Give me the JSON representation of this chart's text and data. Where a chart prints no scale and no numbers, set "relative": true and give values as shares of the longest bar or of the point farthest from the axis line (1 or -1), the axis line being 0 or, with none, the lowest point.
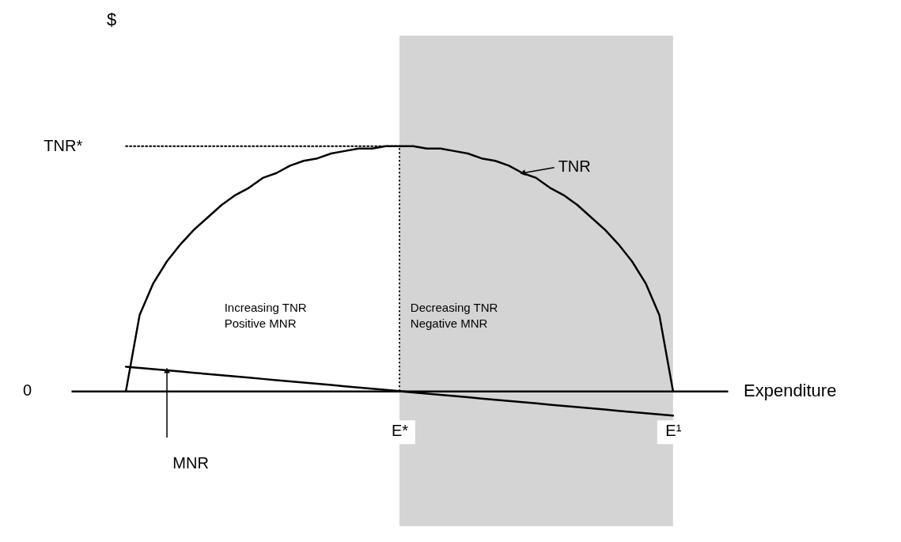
{
  "chart_data": {
    "type": "line",
    "relative": true,
    "xlabel": "Expenditure",
    "categories": [
      null,
      null,
      null,
      null,
      null,
      null,
      null,
      null,
      null,
      null,
      null,
      null,
      null,
      null,
      null,
      null,
      null,
      null,
      null,
      null,
      "E*",
      null,
      null,
      null,
      null,
      null,
      null,
      null,
      null,
      null,
      null,
      null,
      null,
      null,
      null,
      null,
      null,
      null,
      null,
      null,
      "E¹"
    ],
    "series": [
      {
        "name": "TNR",
        "color": "#000000",
        "values": [
          0,
          0.31,
          0.44,
          0.53,
          0.6,
          0.66,
          0.71,
          0.76,
          0.8,
          0.83,
          0.87,
          0.89,
          0.92,
          0.94,
          0.95,
          0.97,
          0.98,
          0.99,
          0.99,
          1,
          1,
          1,
          0.99,
          0.99,
          0.98,
          0.97,
          0.95,
          0.94,
          0.92,
          0.89,
          0.87,
          0.83,
          0.8,
          0.76,
          0.71,
          0.66,
          0.6,
          0.53,
          0.44,
          0.31,
          0
        ]
      },
      {
        "name": "MNR",
        "color": "#000000",
        "values": [
          0.1,
          0.095,
          0.09,
          0.085,
          0.08,
          0.075,
          0.07,
          0.065,
          0.06,
          0.055,
          0.05,
          0.045,
          0.04,
          0.035,
          0.03,
          0.025,
          0.02,
          0.015,
          0.01,
          0.005,
          0,
          -0.005,
          -0.01,
          -0.015,
          -0.02,
          -0.025,
          -0.03,
          -0.035,
          -0.04,
          -0.045,
          -0.05,
          -0.055,
          -0.06,
          -0.065,
          -0.07,
          -0.075,
          -0.08,
          -0.085,
          -0.09,
          -0.095,
          -0.1
        ]
      },
      {
        "name": "TNR*",
        "color": "#000000",
        "line_style": "dotted",
        "values": [
          1,
          1,
          1,
          1,
          1,
          1,
          1,
          1,
          1,
          1,
          1,
          1,
          1,
          1,
          1,
          1,
          1,
          1,
          1,
          1,
          1,
          null,
          null,
          null,
          null,
          null,
          null,
          null,
          null,
          null,
          null,
          null,
          null,
          null,
          null,
          null,
          null,
          null,
          null,
          null,
          null
        ]
      }
    ],
    "ref_lines": [
      {
        "axis": "x",
        "value": "E*",
        "line_style": "dotted"
      }
    ],
    "bands": [
      {
        "axis": "x",
        "from": "E*",
        "to": "E¹",
        "color": "#d4d4d4"
      }
    ],
    "annotations": [
      "Increasing TNR\nPositive MNR",
      "Decreasing TNR\nNegative MNR",
      "0",
      "$"
    ],
    "line_style": "solid"
  }
}
